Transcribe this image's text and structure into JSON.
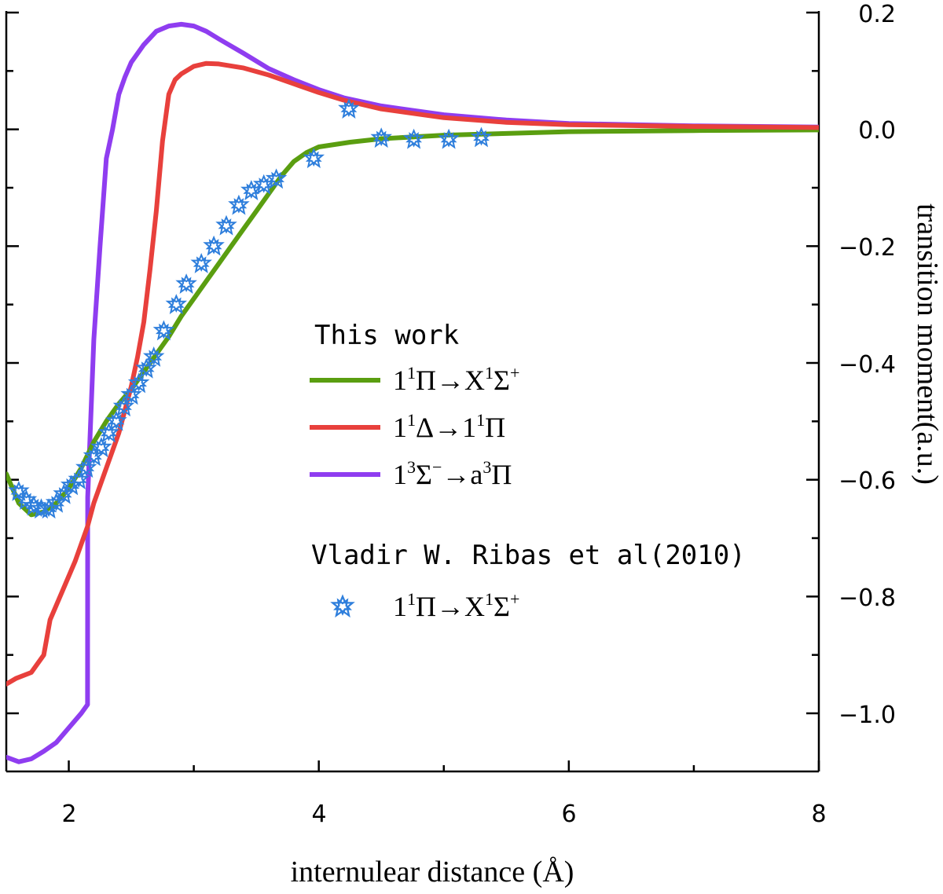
{
  "chart_data": {
    "type": "line",
    "title": "",
    "xlabel": "internulear distance (Å)",
    "ylabel": "transition moment(a.u.)",
    "xlim": [
      1.5,
      8
    ],
    "ylim": [
      -1.1,
      0.2
    ],
    "x_ticks": [
      "2",
      "4",
      "6",
      "8"
    ],
    "y_ticks": [
      "0.2",
      "0.0",
      "−0.2",
      "−0.4",
      "−0.6",
      "−0.8",
      "−1.0"
    ],
    "legend": {
      "group1_title": "This work",
      "group2_title": "Vladir W. Ribas et al(2010)",
      "entries": [
        {
          "main": "1",
          "s1": "1",
          "m1": "Π→X",
          "s2": "1",
          "m2": "Σ",
          "s3": "+",
          "tail": ""
        },
        {
          "main": "1",
          "s1": "1",
          "m1": "Δ→1",
          "s2": "1",
          "m2": "Π",
          "s3": "",
          "tail": ""
        },
        {
          "main": "1",
          "s1": "3",
          "m1": "Σ",
          "s2": "−",
          "m2": "→a",
          "s3": "3",
          "tail": "Π"
        },
        {
          "main": "1",
          "s1": "1",
          "m1": "Π→X",
          "s2": "1",
          "m2": "Σ",
          "s3": "+",
          "tail": ""
        }
      ]
    },
    "series": [
      {
        "name": "1¹Π→X¹Σ⁺ (This work)",
        "color": "#5a9e10",
        "points": [
          [
            1.5,
            -0.59
          ],
          [
            1.6,
            -0.64
          ],
          [
            1.7,
            -0.66
          ],
          [
            1.8,
            -0.655
          ],
          [
            1.9,
            -0.64
          ],
          [
            2.0,
            -0.615
          ],
          [
            2.1,
            -0.58
          ],
          [
            2.2,
            -0.535
          ],
          [
            2.3,
            -0.5
          ],
          [
            2.4,
            -0.47
          ],
          [
            2.5,
            -0.445
          ],
          [
            2.6,
            -0.415
          ],
          [
            2.7,
            -0.385
          ],
          [
            2.8,
            -0.355
          ],
          [
            2.9,
            -0.32
          ],
          [
            3.0,
            -0.29
          ],
          [
            3.1,
            -0.26
          ],
          [
            3.2,
            -0.23
          ],
          [
            3.3,
            -0.2
          ],
          [
            3.4,
            -0.17
          ],
          [
            3.5,
            -0.14
          ],
          [
            3.6,
            -0.11
          ],
          [
            3.7,
            -0.08
          ],
          [
            3.8,
            -0.055
          ],
          [
            3.9,
            -0.04
          ],
          [
            4.0,
            -0.03
          ],
          [
            4.25,
            -0.022
          ],
          [
            4.5,
            -0.016
          ],
          [
            5.0,
            -0.01
          ],
          [
            5.5,
            -0.007
          ],
          [
            6.0,
            -0.004
          ],
          [
            7.0,
            -0.002
          ],
          [
            8.0,
            -0.001
          ]
        ]
      },
      {
        "name": "1¹Δ→1¹Π",
        "color": "#e8403c",
        "points": [
          [
            1.5,
            -0.95
          ],
          [
            1.58,
            -0.94
          ],
          [
            1.7,
            -0.93
          ],
          [
            1.8,
            -0.9
          ],
          [
            1.85,
            -0.84
          ],
          [
            1.95,
            -0.79
          ],
          [
            2.05,
            -0.74
          ],
          [
            2.15,
            -0.68
          ],
          [
            2.2,
            -0.64
          ],
          [
            2.3,
            -0.58
          ],
          [
            2.4,
            -0.52
          ],
          [
            2.5,
            -0.44
          ],
          [
            2.55,
            -0.39
          ],
          [
            2.6,
            -0.33
          ],
          [
            2.65,
            -0.24
          ],
          [
            2.7,
            -0.14
          ],
          [
            2.75,
            -0.02
          ],
          [
            2.8,
            0.06
          ],
          [
            2.85,
            0.085
          ],
          [
            2.9,
            0.095
          ],
          [
            3.0,
            0.108
          ],
          [
            3.1,
            0.113
          ],
          [
            3.2,
            0.112
          ],
          [
            3.4,
            0.105
          ],
          [
            3.6,
            0.093
          ],
          [
            3.8,
            0.078
          ],
          [
            4.0,
            0.063
          ],
          [
            4.2,
            0.05
          ],
          [
            4.5,
            0.035
          ],
          [
            5.0,
            0.02
          ],
          [
            5.5,
            0.012
          ],
          [
            6.0,
            0.008
          ],
          [
            7.0,
            0.005
          ],
          [
            8.0,
            0.003
          ]
        ]
      },
      {
        "name": "1³Σ⁻→a³Π",
        "color": "#8f3df0",
        "points": [
          [
            1.5,
            -1.075
          ],
          [
            1.6,
            -1.083
          ],
          [
            1.7,
            -1.078
          ],
          [
            1.8,
            -1.065
          ],
          [
            1.9,
            -1.05
          ],
          [
            2.0,
            -1.025
          ],
          [
            2.1,
            -1.0
          ],
          [
            2.15,
            -0.985
          ],
          [
            2.151,
            -0.63
          ],
          [
            2.2,
            -0.36
          ],
          [
            2.25,
            -0.2
          ],
          [
            2.3,
            -0.05
          ],
          [
            2.35,
            0.0
          ],
          [
            2.4,
            0.06
          ],
          [
            2.45,
            0.09
          ],
          [
            2.5,
            0.115
          ],
          [
            2.6,
            0.145
          ],
          [
            2.7,
            0.168
          ],
          [
            2.8,
            0.177
          ],
          [
            2.9,
            0.18
          ],
          [
            3.0,
            0.177
          ],
          [
            3.1,
            0.168
          ],
          [
            3.2,
            0.155
          ],
          [
            3.4,
            0.13
          ],
          [
            3.6,
            0.104
          ],
          [
            3.8,
            0.085
          ],
          [
            4.0,
            0.068
          ],
          [
            4.2,
            0.054
          ],
          [
            4.5,
            0.04
          ],
          [
            5.0,
            0.025
          ],
          [
            5.5,
            0.016
          ],
          [
            6.0,
            0.01
          ],
          [
            7.0,
            0.006
          ],
          [
            8.0,
            0.004
          ]
        ]
      },
      {
        "name": "1¹Π→X¹Σ⁺ (Vladir W. Ribas et al 2010)",
        "color": "#2f7fdc",
        "marker": "star",
        "points": [
          [
            1.6,
            -0.62
          ],
          [
            1.66,
            -0.635
          ],
          [
            1.72,
            -0.645
          ],
          [
            1.78,
            -0.65
          ],
          [
            1.84,
            -0.65
          ],
          [
            1.9,
            -0.64
          ],
          [
            1.96,
            -0.625
          ],
          [
            2.02,
            -0.61
          ],
          [
            2.08,
            -0.6
          ],
          [
            2.14,
            -0.58
          ],
          [
            2.2,
            -0.56
          ],
          [
            2.26,
            -0.545
          ],
          [
            2.32,
            -0.52
          ],
          [
            2.38,
            -0.5
          ],
          [
            2.44,
            -0.475
          ],
          [
            2.5,
            -0.455
          ],
          [
            2.56,
            -0.435
          ],
          [
            2.62,
            -0.41
          ],
          [
            2.68,
            -0.39
          ],
          [
            2.76,
            -0.345
          ],
          [
            2.86,
            -0.3
          ],
          [
            2.94,
            -0.265
          ],
          [
            3.06,
            -0.23
          ],
          [
            3.16,
            -0.2
          ],
          [
            3.26,
            -0.165
          ],
          [
            3.36,
            -0.13
          ],
          [
            3.46,
            -0.105
          ],
          [
            3.56,
            -0.095
          ],
          [
            3.66,
            -0.085
          ],
          [
            3.96,
            -0.05
          ],
          [
            4.24,
            0.035
          ],
          [
            4.5,
            -0.015
          ],
          [
            4.76,
            -0.017
          ],
          [
            5.04,
            -0.017
          ],
          [
            5.3,
            -0.014
          ]
        ]
      }
    ]
  }
}
